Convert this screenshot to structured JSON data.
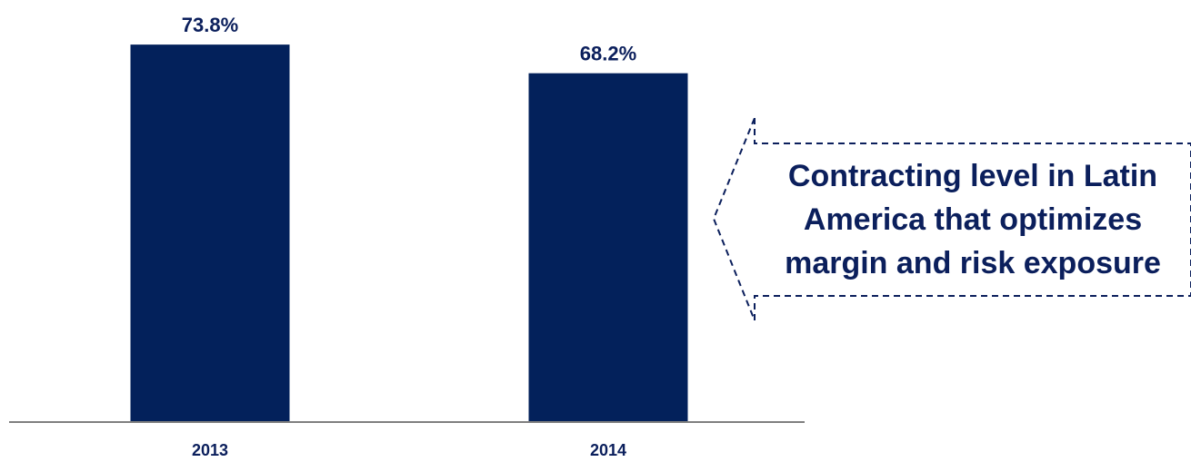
{
  "colors": {
    "bar": "#03215b",
    "label": "#0b1f5c",
    "axis": "#7f7f7f",
    "callout_border": "#0b1f5c"
  },
  "chart_data": {
    "type": "bar",
    "categories": [
      "2013",
      "2014"
    ],
    "values": [
      73.8,
      68.2
    ],
    "value_labels": [
      "73.8%",
      "68.2%"
    ],
    "title": "",
    "xlabel": "",
    "ylabel": "",
    "ylim": [
      0,
      74
    ],
    "grid": false,
    "legend": "none"
  },
  "callout": {
    "lines": [
      "Contracting level in Latin",
      "America that optimizes",
      "margin and risk exposure"
    ]
  }
}
